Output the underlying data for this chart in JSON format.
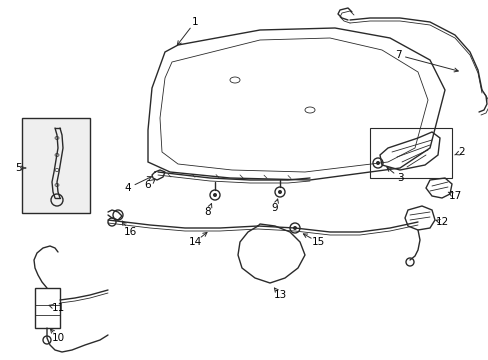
{
  "bg_color": "#ffffff",
  "line_color": "#2a2a2a",
  "label_color": "#000000",
  "lw_main": 1.0,
  "lw_thin": 0.6,
  "figsize": [
    4.89,
    3.6
  ],
  "dpi": 100
}
